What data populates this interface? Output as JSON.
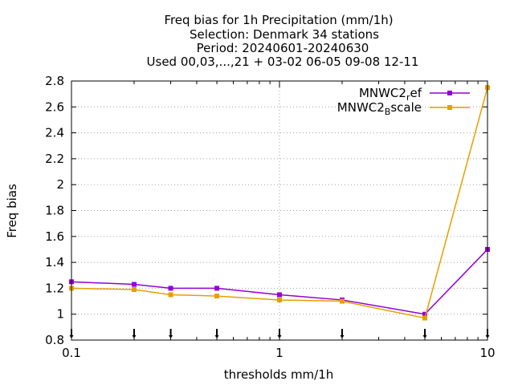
{
  "chart_data": {
    "type": "line",
    "title_lines": [
      "Freq bias  for 1h Precipitation (mm/1h)",
      "Selection: Denmark     34 stations",
      "Period: 20240601-20240630",
      "Used 00,03,...,21 + 03-02 06-05 09-08 12-11"
    ],
    "xlabel": "thresholds mm/1h",
    "ylabel": "Freq bias",
    "x_scale": "log",
    "xlim": [
      0.1,
      10
    ],
    "ylim": [
      0.8,
      2.8
    ],
    "x_ticks": [
      0.1,
      1,
      10
    ],
    "x_tick_labels": [
      "0.1",
      "1",
      "10"
    ],
    "y_ticks": [
      0.8,
      1.0,
      1.2,
      1.4,
      1.6,
      1.8,
      2.0,
      2.2,
      2.4,
      2.6,
      2.8
    ],
    "y_tick_labels": [
      "0.8",
      "1",
      "1.2",
      "1.4",
      "1.6",
      "1.8",
      "2",
      "2.2",
      "2.4",
      "2.6",
      "2.8"
    ],
    "grid": true,
    "legend_position": "top-right",
    "x": [
      0.1,
      0.2,
      0.3,
      0.5,
      1,
      2,
      5,
      10
    ],
    "series": [
      {
        "name": "MNWC2ref",
        "legend_main": "MNWC2",
        "legend_sub": "r",
        "legend_tail": "ef",
        "color": "#9400d3",
        "values": [
          1.25,
          1.23,
          1.2,
          1.2,
          1.15,
          1.11,
          1.0,
          1.5
        ]
      },
      {
        "name": "MNWC2Bscale",
        "legend_main": "MNWC2",
        "legend_sub": "B",
        "legend_tail": "scale",
        "color": "#e69f00",
        "values": [
          1.2,
          1.19,
          1.15,
          1.14,
          1.11,
          1.1,
          0.97,
          2.75
        ]
      }
    ],
    "bottom_markers_x": [
      0.1,
      0.2,
      0.3,
      0.5,
      1,
      2,
      5,
      10
    ]
  }
}
